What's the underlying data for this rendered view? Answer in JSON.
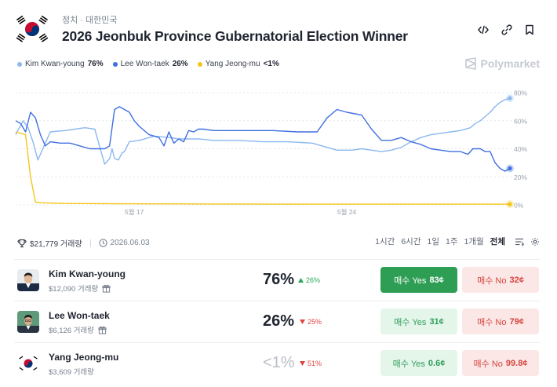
{
  "header": {
    "breadcrumb": "정치 · 대한민국",
    "title": "2026 Jeonbuk Province Gubernatorial Election Winner",
    "icons": [
      "code-icon",
      "link-icon",
      "bookmark-icon"
    ]
  },
  "brand": {
    "name": "Polymarket"
  },
  "legend": [
    {
      "name": "Kim Kwan-young",
      "value": "76%",
      "color": "#8bb8ee"
    },
    {
      "name": "Lee Won-taek",
      "value": "26%",
      "color": "#3f6fe0"
    },
    {
      "name": "Yang Jeong-mu",
      "value": "<1%",
      "color": "#f5c518"
    }
  ],
  "chart_data": {
    "type": "line",
    "x_tick_labels": [
      "5월 17",
      "5월 24"
    ],
    "y_tick_labels": [
      "80%",
      "60%",
      "40%",
      "20%",
      "0%"
    ],
    "ylim": [
      0,
      80
    ],
    "grid": true,
    "x_range": [
      0,
      100
    ],
    "series": [
      {
        "name": "Kim Kwan-young",
        "color": "#8bb8ee",
        "x": [
          0,
          1.5,
          2.5,
          3.5,
          4.5,
          5.5,
          7,
          10,
          12,
          14,
          16,
          18,
          19,
          19.5,
          20,
          20.8,
          21.5,
          22,
          23,
          25,
          28,
          31,
          33,
          35,
          37,
          40,
          45,
          50,
          55,
          60,
          65,
          68,
          70,
          72,
          74,
          76,
          78,
          80,
          82,
          84,
          86,
          88,
          90,
          92,
          93,
          94,
          95,
          96,
          97,
          98,
          99,
          100
        ],
        "values": [
          50,
          60,
          55,
          45,
          32,
          40,
          52,
          53,
          54,
          55,
          54,
          29,
          33,
          40,
          33,
          32,
          37,
          38,
          45,
          46,
          49,
          48,
          47,
          47,
          47,
          46,
          46,
          45,
          45,
          44,
          39,
          39,
          40,
          39,
          38,
          39,
          41,
          45,
          48,
          50,
          51,
          52,
          53,
          55,
          58,
          60,
          63,
          66,
          70,
          73,
          75,
          76
        ]
      },
      {
        "name": "Lee Won-taek",
        "color": "#3f6fe0",
        "x": [
          0,
          1,
          2,
          3,
          4,
          5,
          6,
          7,
          9,
          11,
          13,
          15,
          17,
          18,
          19,
          20,
          21,
          22,
          23,
          24,
          25,
          27,
          29,
          30,
          31,
          32,
          33,
          34,
          35,
          36,
          37,
          38,
          40,
          43,
          47,
          52,
          57,
          61,
          63,
          65,
          67,
          70,
          72,
          74,
          76,
          78,
          80,
          82,
          84,
          86,
          88,
          90,
          91.5,
          92.5,
          94,
          95,
          96,
          97,
          98,
          99,
          100
        ],
        "values": [
          60,
          58,
          52,
          66,
          62,
          50,
          42,
          45,
          44,
          44,
          42,
          40,
          40,
          40,
          42,
          68,
          70,
          68,
          66,
          60,
          56,
          50,
          48,
          42,
          52,
          44,
          47,
          45,
          53,
          52,
          54,
          54,
          53,
          53,
          53,
          53,
          52,
          52,
          62,
          68,
          66,
          64,
          54,
          46,
          46,
          48,
          45,
          43,
          40,
          39,
          38,
          38,
          36,
          40,
          40,
          38,
          38,
          30,
          26,
          24,
          26
        ]
      },
      {
        "name": "Yang Jeong-mu",
        "color": "#f5c518",
        "x": [
          0,
          2,
          3,
          4,
          5,
          10,
          20,
          40,
          60,
          80,
          100
        ],
        "values": [
          52,
          50,
          20,
          2,
          1.5,
          1,
          0.8,
          0.6,
          0.5,
          0.5,
          0.5
        ]
      }
    ]
  },
  "stats": {
    "volume": "$21,779 거래량",
    "end_date": "2026.06.03"
  },
  "ranges": [
    "1시간",
    "6시간",
    "1일",
    "1주",
    "1개월",
    "전체"
  ],
  "active_range": "전체",
  "candidates": [
    {
      "name": "Kim Kwan-young",
      "volume": "$12,090 거래량",
      "prob": "76%",
      "change": "26%",
      "dir": "up",
      "yes_label": "매수 Yes",
      "yes_price": "83¢",
      "no_label": "매수 No",
      "no_price": "32¢"
    },
    {
      "name": "Lee Won-taek",
      "volume": "$6,126 거래량",
      "prob": "26%",
      "change": "25%",
      "dir": "down",
      "yes_label": "매수 Yes",
      "yes_price": "31¢",
      "no_label": "매수 No",
      "no_price": "79¢"
    },
    {
      "name": "Yang Jeong-mu",
      "volume": "$3,609 거래량",
      "prob": "<1%",
      "change": "51%",
      "dir": "down",
      "yes_label": "매수 Yes",
      "yes_price": "0.6¢",
      "no_label": "매수 No",
      "no_price": "99.8¢"
    }
  ]
}
